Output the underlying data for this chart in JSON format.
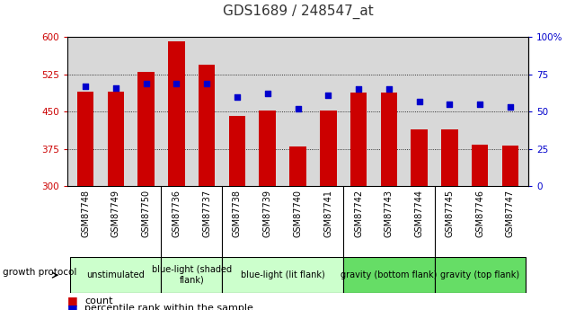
{
  "title": "GDS1689 / 248547_at",
  "samples": [
    "GSM87748",
    "GSM87749",
    "GSM87750",
    "GSM87736",
    "GSM87737",
    "GSM87738",
    "GSM87739",
    "GSM87740",
    "GSM87741",
    "GSM87742",
    "GSM87743",
    "GSM87744",
    "GSM87745",
    "GSM87746",
    "GSM87747"
  ],
  "counts": [
    490,
    490,
    530,
    592,
    545,
    442,
    453,
    380,
    453,
    488,
    488,
    415,
    415,
    384,
    382
  ],
  "percentiles": [
    67,
    66,
    69,
    69,
    69,
    60,
    62,
    52,
    61,
    65,
    65,
    57,
    55,
    55,
    53
  ],
  "ylim_left": [
    300,
    600
  ],
  "ylim_right": [
    0,
    100
  ],
  "yticks_left": [
    300,
    375,
    450,
    525,
    600
  ],
  "yticks_right": [
    0,
    25,
    50,
    75,
    100
  ],
  "bar_color": "#cc0000",
  "dot_color": "#0000cc",
  "groups": [
    {
      "label": "unstimulated",
      "indices": [
        0,
        1,
        2
      ],
      "color": "#ccffcc"
    },
    {
      "label": "blue-light (shaded\nflank)",
      "indices": [
        3,
        4
      ],
      "color": "#ccffcc"
    },
    {
      "label": "blue-light (lit flank)",
      "indices": [
        5,
        6,
        7,
        8
      ],
      "color": "#ccffcc"
    },
    {
      "label": "gravity (bottom flank)",
      "indices": [
        9,
        10,
        11
      ],
      "color": "#66dd66"
    },
    {
      "label": "gravity (top flank)",
      "indices": [
        12,
        13,
        14
      ],
      "color": "#66dd66"
    }
  ],
  "legend_count_label": "count",
  "legend_pct_label": "percentile rank within the sample",
  "growth_protocol_label": "growth protocol",
  "background_color": "#ffffff",
  "plot_bg_color": "#d8d8d8",
  "xtick_area_color": "#b8b8b8",
  "left_axis_color": "#cc0000",
  "right_axis_color": "#0000cc",
  "title_color": "#333333",
  "title_fontsize": 11,
  "tick_fontsize": 7.5,
  "xlabel_fontsize": 7,
  "group_fontsize": 7,
  "legend_fontsize": 8
}
